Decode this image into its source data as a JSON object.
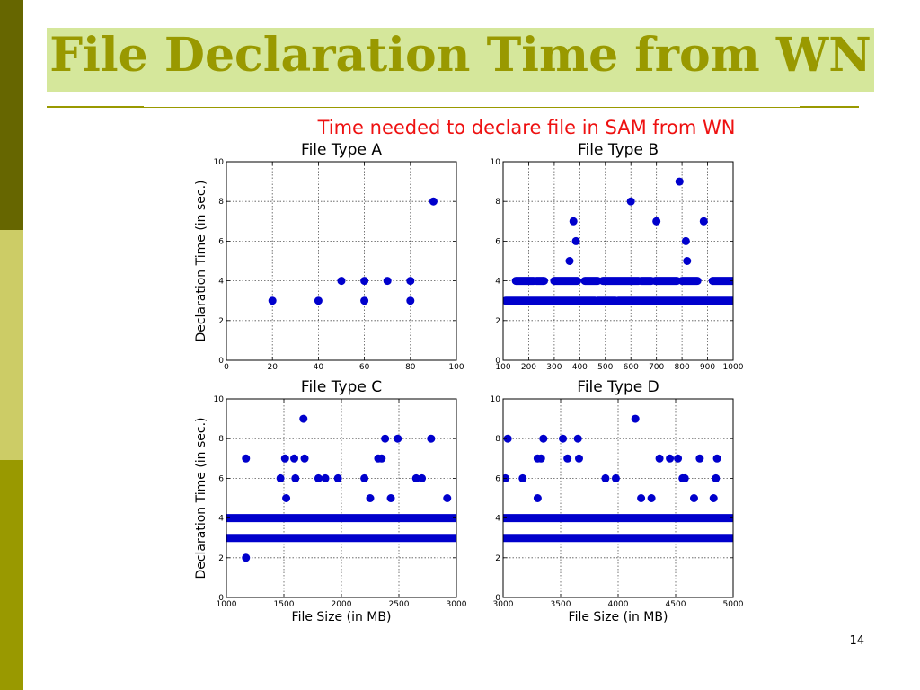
{
  "slide": {
    "title": "File Declaration Time from WN",
    "number": "14",
    "colors": {
      "title": "#999900",
      "band": "#d5e79b",
      "accent_dark": "#666600",
      "accent_light": "#cccc66",
      "accent_mid": "#999900"
    }
  },
  "chart_data": {
    "type": "scatter",
    "title": "Time needed to declare file in SAM from WN",
    "title_color": "#ee1111",
    "point_color": "#0000cc",
    "panels": [
      {
        "title": "File Type A",
        "xlabel": "",
        "ylabel": "Declaration Time (in sec.)",
        "xlim": [
          0,
          100
        ],
        "ylim": [
          0,
          10
        ],
        "xticks": [
          0,
          20,
          40,
          60,
          80,
          100
        ],
        "yticks": [
          0,
          2,
          4,
          6,
          8,
          10
        ],
        "grid": true,
        "points": [
          [
            20,
            3
          ],
          [
            40,
            3
          ],
          [
            50,
            4
          ],
          [
            60,
            4
          ],
          [
            60,
            3
          ],
          [
            70,
            4
          ],
          [
            80,
            4
          ],
          [
            80,
            3
          ],
          [
            90,
            8
          ]
        ]
      },
      {
        "title": "File Type B",
        "xlabel": "",
        "ylabel": "",
        "xlim": [
          100,
          1000
        ],
        "ylim": [
          0,
          10
        ],
        "xticks": [
          100,
          200,
          300,
          400,
          500,
          600,
          700,
          800,
          900,
          1000
        ],
        "yticks": [
          0,
          2,
          4,
          6,
          8,
          10
        ],
        "grid": true,
        "points": [
          [
            360,
            5
          ],
          [
            375,
            7
          ],
          [
            385,
            6
          ],
          [
            600,
            8
          ],
          [
            700,
            7
          ],
          [
            790,
            9
          ],
          [
            815,
            6
          ],
          [
            820,
            5
          ],
          [
            885,
            7
          ]
        ],
        "bands": [
          {
            "y": 3,
            "segments": [
              [
                110,
                460
              ],
              [
                470,
                540
              ],
              [
                550,
                1000
              ]
            ]
          },
          {
            "y": 4,
            "segments": [
              [
                150,
                220
              ],
              [
                230,
                260
              ],
              [
                300,
                390
              ],
              [
                420,
                470
              ],
              [
                490,
                630
              ],
              [
                640,
                680
              ],
              [
                695,
                780
              ],
              [
                800,
                860
              ],
              [
                920,
                1000
              ]
            ]
          }
        ]
      },
      {
        "title": "File Type C",
        "xlabel": "File Size (in MB)",
        "ylabel": "Declaration Time (in sec.)",
        "xlim": [
          1000,
          3000
        ],
        "ylim": [
          0,
          10
        ],
        "xticks": [
          1000,
          1500,
          2000,
          2500,
          3000
        ],
        "yticks": [
          0,
          2,
          4,
          6,
          8,
          10
        ],
        "grid": true,
        "points": [
          [
            1170,
            7
          ],
          [
            1170,
            2
          ],
          [
            1470,
            6
          ],
          [
            1510,
            7
          ],
          [
            1520,
            5
          ],
          [
            1590,
            7
          ],
          [
            1600,
            6
          ],
          [
            1670,
            9
          ],
          [
            1680,
            7
          ],
          [
            1800,
            6
          ],
          [
            1860,
            6
          ],
          [
            1970,
            6
          ],
          [
            2200,
            6
          ],
          [
            2250,
            5
          ],
          [
            2320,
            7
          ],
          [
            2350,
            7
          ],
          [
            2380,
            8
          ],
          [
            2430,
            5
          ],
          [
            2490,
            8
          ],
          [
            2650,
            6
          ],
          [
            2700,
            6
          ],
          [
            2780,
            8
          ],
          [
            2920,
            5
          ]
        ],
        "bands": [
          {
            "y": 3,
            "segments": [
              [
                1000,
                3000
              ]
            ]
          },
          {
            "y": 4,
            "segments": [
              [
                1000,
                3000
              ]
            ]
          }
        ]
      },
      {
        "title": "File Type D",
        "xlabel": "File Size (in MB)",
        "ylabel": "",
        "xlim": [
          3000,
          5000
        ],
        "ylim": [
          0,
          10
        ],
        "xticks": [
          3000,
          3500,
          4000,
          4500,
          5000
        ],
        "yticks": [
          0,
          2,
          4,
          6,
          8,
          10
        ],
        "grid": true,
        "points": [
          [
            3020,
            6
          ],
          [
            3040,
            8
          ],
          [
            3170,
            6
          ],
          [
            3300,
            5
          ],
          [
            3300,
            7
          ],
          [
            3330,
            7
          ],
          [
            3350,
            8
          ],
          [
            3520,
            8
          ],
          [
            3560,
            7
          ],
          [
            3650,
            8
          ],
          [
            3660,
            7
          ],
          [
            3890,
            6
          ],
          [
            3980,
            6
          ],
          [
            4150,
            9
          ],
          [
            4200,
            5
          ],
          [
            4290,
            5
          ],
          [
            4360,
            7
          ],
          [
            4450,
            7
          ],
          [
            4520,
            7
          ],
          [
            4560,
            6
          ],
          [
            4580,
            6
          ],
          [
            4660,
            5
          ],
          [
            4710,
            7
          ],
          [
            4830,
            5
          ],
          [
            4850,
            6
          ],
          [
            4860,
            7
          ]
        ],
        "bands": [
          {
            "y": 3,
            "segments": [
              [
                3000,
                5000
              ]
            ]
          },
          {
            "y": 4,
            "segments": [
              [
                3000,
                5000
              ]
            ]
          }
        ]
      }
    ]
  }
}
